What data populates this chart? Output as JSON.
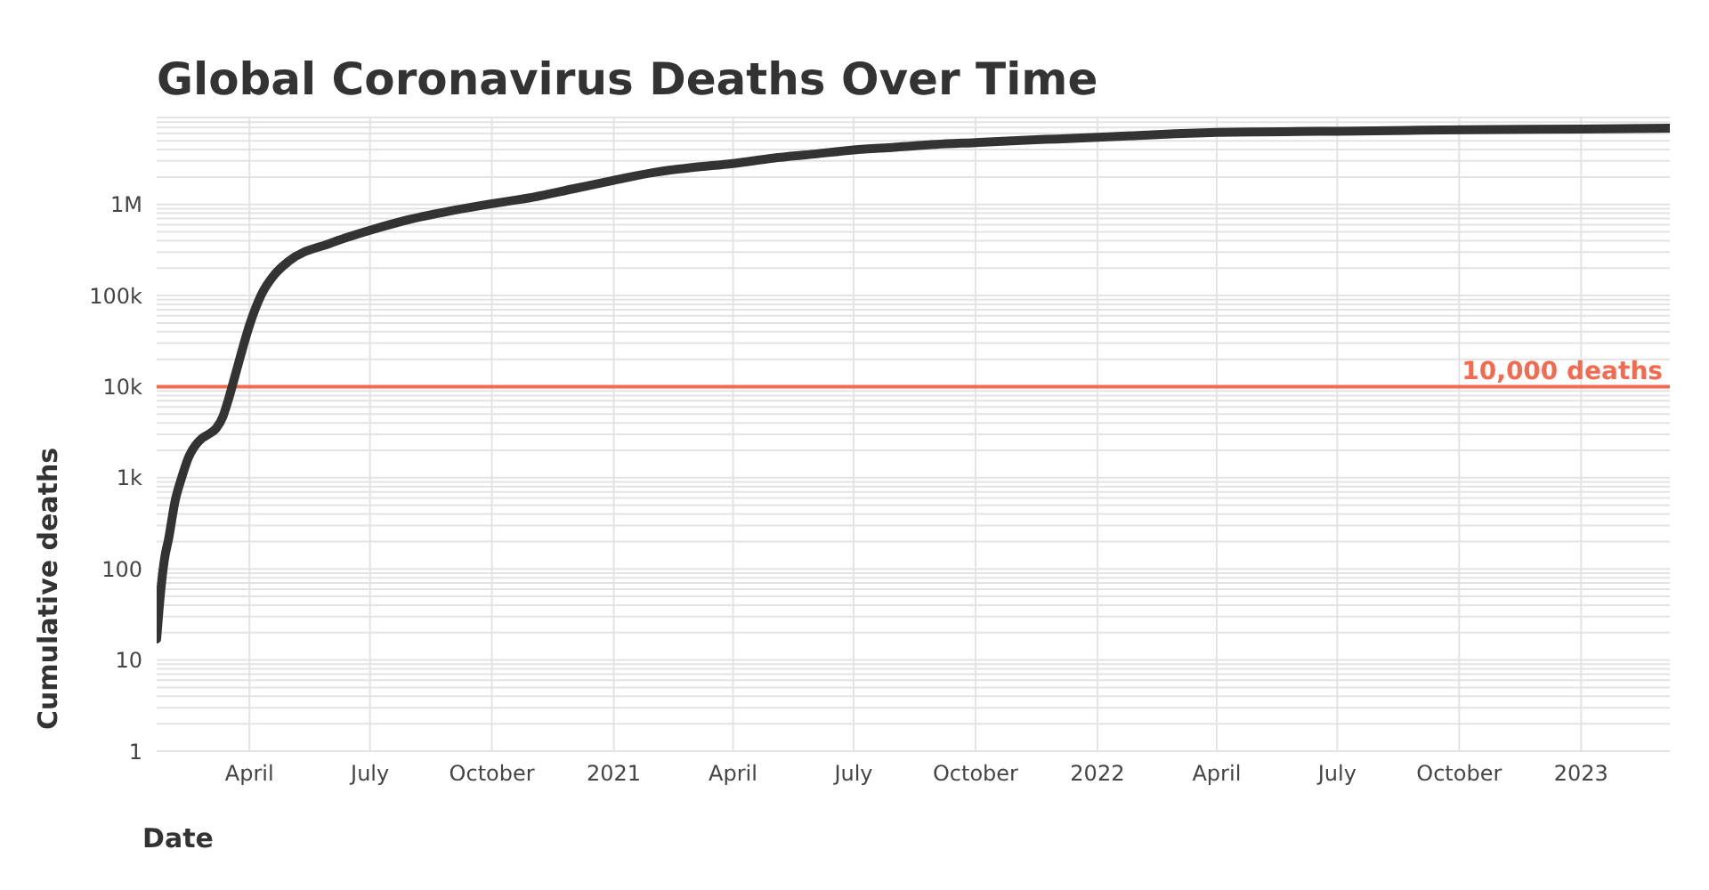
{
  "chart_data": {
    "type": "line",
    "title": "Global Coronavirus Deaths Over Time",
    "xlabel": "Date",
    "ylabel": "Cumulative deaths",
    "log": "y",
    "grid": true,
    "marker": "none",
    "line_style": "solid",
    "xlim": [
      "2020-01-22",
      "2023-03-09"
    ],
    "xticks": [
      {
        "value": "2020-04-01",
        "label": "April"
      },
      {
        "value": "2020-07-01",
        "label": "July"
      },
      {
        "value": "2020-10-01",
        "label": "October"
      },
      {
        "value": "2021-01-01",
        "label": "2021"
      },
      {
        "value": "2021-04-01",
        "label": "April"
      },
      {
        "value": "2021-07-01",
        "label": "July"
      },
      {
        "value": "2021-10-01",
        "label": "October"
      },
      {
        "value": "2022-01-01",
        "label": "2022"
      },
      {
        "value": "2022-04-01",
        "label": "April"
      },
      {
        "value": "2022-07-01",
        "label": "July"
      },
      {
        "value": "2022-10-01",
        "label": "October"
      },
      {
        "value": "2023-01-01",
        "label": "2023"
      }
    ],
    "ylim": [
      1,
      9000000
    ],
    "yticks": [
      1,
      {
        "value": 2,
        "label": null
      },
      {
        "value": 3,
        "label": null
      },
      {
        "value": 4,
        "label": null
      },
      {
        "value": 5,
        "label": null
      },
      {
        "value": 6,
        "label": null
      },
      {
        "value": 7,
        "label": null
      },
      {
        "value": 8,
        "label": null
      },
      {
        "value": 9,
        "label": null
      },
      10,
      {
        "value": 20,
        "label": null
      },
      {
        "value": 30,
        "label": null
      },
      {
        "value": 40,
        "label": null
      },
      {
        "value": 50,
        "label": null
      },
      {
        "value": 60,
        "label": null
      },
      {
        "value": 70,
        "label": null
      },
      {
        "value": 80,
        "label": null
      },
      {
        "value": 90,
        "label": null
      },
      100,
      {
        "value": 200,
        "label": null
      },
      {
        "value": 300,
        "label": null
      },
      {
        "value": 400,
        "label": null
      },
      {
        "value": 500,
        "label": null
      },
      {
        "value": 600,
        "label": null
      },
      {
        "value": 700,
        "label": null
      },
      {
        "value": 800,
        "label": null
      },
      {
        "value": 900,
        "label": null
      },
      {
        "value": 1000,
        "label": "1k"
      },
      {
        "value": 2000,
        "label": null
      },
      {
        "value": 3000,
        "label": null
      },
      {
        "value": 4000,
        "label": null
      },
      {
        "value": 5000,
        "label": null
      },
      {
        "value": 6000,
        "label": null
      },
      {
        "value": 7000,
        "label": null
      },
      {
        "value": 8000,
        "label": null
      },
      {
        "value": 9000,
        "label": null
      },
      {
        "value": 10000,
        "label": "10k"
      },
      {
        "value": 20000,
        "label": null
      },
      {
        "value": 30000,
        "label": null
      },
      {
        "value": 40000,
        "label": null
      },
      {
        "value": 50000,
        "label": null
      },
      {
        "value": 60000,
        "label": null
      },
      {
        "value": 70000,
        "label": null
      },
      {
        "value": 80000,
        "label": null
      },
      {
        "value": 90000,
        "label": null
      },
      {
        "value": 100000,
        "label": "100k"
      },
      {
        "value": 200000,
        "label": null
      },
      {
        "value": 300000,
        "label": null
      },
      {
        "value": 400000,
        "label": null
      },
      {
        "value": 500000,
        "label": null
      },
      {
        "value": 600000,
        "label": null
      },
      {
        "value": 700000,
        "label": null
      },
      {
        "value": 800000,
        "label": null
      },
      {
        "value": 900000,
        "label": null
      },
      {
        "value": 1000000,
        "label": "1M"
      },
      {
        "value": 2000000,
        "label": null
      },
      {
        "value": 3000000,
        "label": null
      },
      {
        "value": 4000000,
        "label": null
      },
      {
        "value": 5000000,
        "label": null
      },
      {
        "value": 6000000,
        "label": null
      },
      {
        "value": 7000000,
        "label": null
      },
      {
        "value": 8000000,
        "label": null
      },
      {
        "value": 9000000,
        "label": null
      }
    ],
    "ref_lines": [
      {
        "axis": "y",
        "value": 10000,
        "label": "10,000 deaths",
        "color": "#f26b50",
        "line_style": "solid"
      }
    ],
    "x": [
      "2020-01-22",
      "2020-01-25",
      "2020-01-28",
      "2020-01-31",
      "2020-02-05",
      "2020-02-10",
      "2020-02-15",
      "2020-02-20",
      "2020-02-25",
      "2020-03-01",
      "2020-03-07",
      "2020-03-12",
      "2020-03-16",
      "2020-03-20",
      "2020-03-25",
      "2020-04-01",
      "2020-04-10",
      "2020-04-20",
      "2020-05-01",
      "2020-06-01",
      "2020-07-01",
      "2020-08-01",
      "2020-09-01",
      "2020-10-01",
      "2020-11-01",
      "2020-12-01",
      "2021-01-01",
      "2021-02-01",
      "2021-03-01",
      "2021-04-01",
      "2021-05-01",
      "2021-06-01",
      "2021-07-01",
      "2021-08-01",
      "2021-09-01",
      "2021-10-01",
      "2021-11-01",
      "2021-12-01",
      "2022-01-01",
      "2022-02-01",
      "2022-03-01",
      "2022-04-01",
      "2022-05-01",
      "2022-06-01",
      "2022-07-01",
      "2022-09-01",
      "2022-11-01",
      "2023-01-01",
      "2023-03-09"
    ],
    "series": [
      {
        "color": "#333333",
        "values": [
          17,
          56,
          131,
          213,
          564,
          1018,
          1666,
          2247,
          2700,
          3000,
          3500,
          4700,
          7100,
          11400,
          21000,
          47000,
          102000,
          170000,
          240000,
          375000,
          520000,
          690000,
          855000,
          1020000,
          1200000,
          1480000,
          1840000,
          2250000,
          2540000,
          2810000,
          3220000,
          3570000,
          3960000,
          4240000,
          4560000,
          4780000,
          5020000,
          5230000,
          5450000,
          5710000,
          5970000,
          6170000,
          6260000,
          6310000,
          6360000,
          6520000,
          6630000,
          6720000,
          6880000
        ]
      }
    ]
  }
}
